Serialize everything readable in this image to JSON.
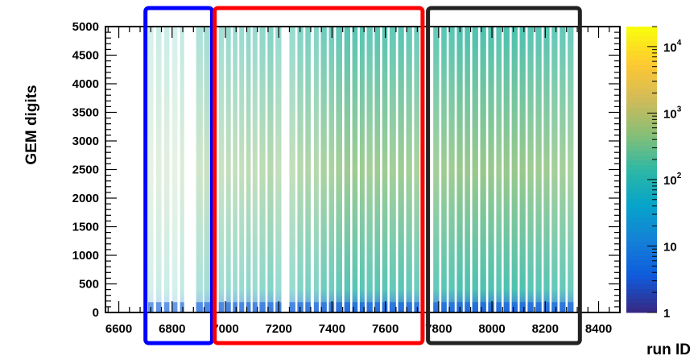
{
  "chart_data": {
    "type": "heatmap",
    "xlabel": "run ID",
    "ylabel": "GEM digits",
    "xlim": [
      6550,
      8480
    ],
    "ylim": [
      0,
      5000
    ],
    "x_ticks": [
      6600,
      6800,
      7000,
      7200,
      7400,
      7600,
      7800,
      8000,
      8200,
      8400
    ],
    "x_tick_labels": [
      "6600",
      "6800",
      "7000",
      "7200",
      "7400",
      "7600",
      "7800",
      "8000",
      "8200",
      "8400"
    ],
    "y_ticks": [
      0,
      500,
      1000,
      1500,
      2000,
      2500,
      3000,
      3500,
      4000,
      4500,
      5000
    ],
    "y_tick_labels": [
      "0",
      "500",
      "1000",
      "1500",
      "2000",
      "2500",
      "3000",
      "3500",
      "4000",
      "4500",
      "5000"
    ],
    "colorbar": {
      "scale": "log",
      "range": [
        1,
        20000
      ],
      "ticks": [
        1,
        10,
        100,
        1000,
        10000
      ],
      "tick_labels": [
        {
          "base": "1",
          "exp": ""
        },
        {
          "base": "10",
          "exp": ""
        },
        {
          "base": "10",
          "exp": "2"
        },
        {
          "base": "10",
          "exp": "3"
        },
        {
          "base": "10",
          "exp": "4"
        }
      ],
      "colors": [
        "#352a87",
        "#0f5cdd",
        "#1481d6",
        "#06a4ca",
        "#2eb7a4",
        "#87bf77",
        "#d1bb59",
        "#fec832",
        "#f9fb0e"
      ]
    },
    "run_bands": [
      [
        6710,
        6730
      ],
      [
        6740,
        6760
      ],
      [
        6770,
        6790
      ],
      [
        6800,
        6820
      ],
      [
        6830,
        6845
      ],
      [
        6890,
        6915
      ],
      [
        6920,
        6945
      ],
      [
        6975,
        6995
      ],
      [
        7002,
        7020
      ],
      [
        7028,
        7045
      ],
      [
        7052,
        7070
      ],
      [
        7078,
        7095
      ],
      [
        7102,
        7120
      ],
      [
        7128,
        7150
      ],
      [
        7158,
        7180
      ],
      [
        7188,
        7210
      ],
      [
        7240,
        7262
      ],
      [
        7270,
        7292
      ],
      [
        7300,
        7320
      ],
      [
        7332,
        7350
      ],
      [
        7358,
        7380
      ],
      [
        7388,
        7408
      ],
      [
        7415,
        7438
      ],
      [
        7446,
        7468
      ],
      [
        7476,
        7496
      ],
      [
        7504,
        7522
      ],
      [
        7530,
        7552
      ],
      [
        7560,
        7580
      ],
      [
        7588,
        7608
      ],
      [
        7616,
        7640
      ],
      [
        7648,
        7670
      ],
      [
        7678,
        7700
      ],
      [
        7708,
        7728
      ],
      [
        7780,
        7802
      ],
      [
        7810,
        7830
      ],
      [
        7838,
        7860
      ],
      [
        7868,
        7890
      ],
      [
        7898,
        7918
      ],
      [
        7926,
        7948
      ],
      [
        7956,
        7978
      ],
      [
        7986,
        8008
      ],
      [
        8016,
        8036
      ],
      [
        8044,
        8066
      ],
      [
        8074,
        8096
      ],
      [
        8104,
        8126
      ],
      [
        8134,
        8156
      ],
      [
        8164,
        8186
      ],
      [
        8194,
        8216
      ],
      [
        8224,
        8246
      ],
      [
        8254,
        8276
      ],
      [
        8284,
        8306
      ]
    ],
    "band_intensity": [
      0.2,
      0.25,
      0.25,
      0.2,
      0.3,
      0.4,
      0.45,
      0.45,
      0.5,
      0.5,
      0.5,
      0.55,
      0.5,
      0.55,
      0.6,
      0.5,
      0.5,
      0.6,
      0.65,
      0.6,
      0.7,
      0.7,
      0.75,
      0.8,
      0.8,
      0.8,
      0.75,
      0.8,
      0.8,
      0.75,
      0.8,
      0.75,
      0.7,
      0.75,
      0.8,
      0.8,
      0.85,
      0.85,
      0.85,
      0.85,
      0.85,
      0.8,
      0.85,
      0.85,
      0.85,
      0.8,
      0.8,
      0.8,
      0.75,
      0.75,
      0.7
    ],
    "highlight_regions": [
      {
        "color": "#0000ff",
        "x_range": [
          6700,
          6950
        ]
      },
      {
        "color": "#ff0000",
        "x_range": [
          6960,
          7740
        ]
      },
      {
        "color": "#222222",
        "x_range": [
          7760,
          8330
        ]
      }
    ]
  }
}
